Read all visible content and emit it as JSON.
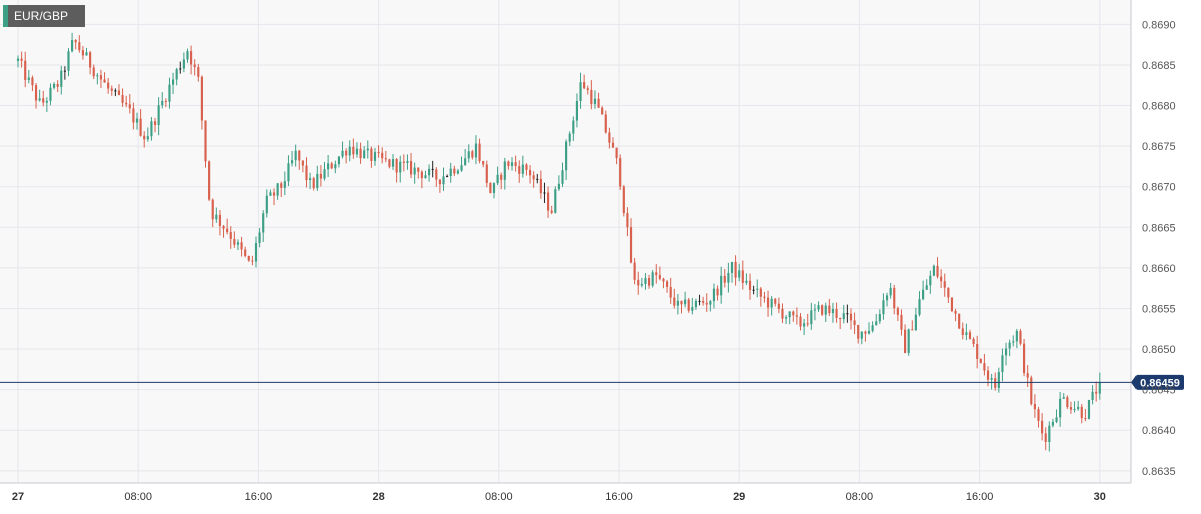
{
  "chart_data": {
    "type": "candlestick",
    "title": "EUR/GBP",
    "y_ticks": [
      0.869,
      0.8685,
      0.868,
      0.8675,
      0.867,
      0.8665,
      0.866,
      0.8655,
      0.865,
      0.8645,
      0.864,
      0.8635
    ],
    "y_tick_labels": [
      "0.8690",
      "0.8685",
      "0.8680",
      "0.8675",
      "0.8670",
      "0.8665",
      "0.8660",
      "0.8655",
      "0.8650",
      "0.8645",
      "0.8640",
      "0.8635"
    ],
    "ylim": [
      0.86335,
      0.8693
    ],
    "x_range_hours": [
      0,
      100
    ],
    "x_ticks": [
      {
        "label": "27",
        "hour": 0,
        "bold": true
      },
      {
        "label": "08:00",
        "hour": 8,
        "bold": false
      },
      {
        "label": "16:00",
        "hour": 16,
        "bold": false
      },
      {
        "label": "28",
        "hour": 24,
        "bold": true
      },
      {
        "label": "08:00",
        "hour": 32,
        "bold": false
      },
      {
        "label": "16:00",
        "hour": 40,
        "bold": false
      },
      {
        "label": "29",
        "hour": 48,
        "bold": true
      },
      {
        "label": "08:00",
        "hour": 56,
        "bold": false
      },
      {
        "label": "16:00",
        "hour": 64,
        "bold": false
      },
      {
        "label": "30",
        "hour": 72,
        "bold": true
      }
    ],
    "current_price": 0.86459,
    "current_price_label": "0.86459",
    "colors": {
      "up": "#3d9f86",
      "down": "#d8604c",
      "doji": "#222222",
      "price_line": "#1d3a6e",
      "price_label_bg": "#1d3a6e",
      "grid": "#e6e6ec",
      "plot_bg": "#f8f8f9",
      "axis_text": "#555555"
    },
    "grid": true,
    "key_points": [
      [
        0.0,
        0.86855
      ],
      [
        1.5,
        0.868
      ],
      [
        2.8,
        0.8683
      ],
      [
        3.7,
        0.8688
      ],
      [
        6.0,
        0.8682
      ],
      [
        7.5,
        0.8679
      ],
      [
        8.5,
        0.8676
      ],
      [
        10.0,
        0.8682
      ],
      [
        11.3,
        0.8687
      ],
      [
        12.0,
        0.8683
      ],
      [
        12.8,
        0.8667
      ],
      [
        14.0,
        0.86645
      ],
      [
        15.5,
        0.866
      ],
      [
        16.5,
        0.8668
      ],
      [
        17.5,
        0.867
      ],
      [
        18.5,
        0.8674
      ],
      [
        19.5,
        0.867
      ],
      [
        20.5,
        0.8672
      ],
      [
        22.0,
        0.8675
      ],
      [
        23.0,
        0.8674
      ],
      [
        24.5,
        0.8673
      ],
      [
        26.5,
        0.8672
      ],
      [
        28.0,
        0.8671
      ],
      [
        29.5,
        0.8673
      ],
      [
        30.5,
        0.8675
      ],
      [
        31.5,
        0.8669
      ],
      [
        32.5,
        0.8673
      ],
      [
        34.0,
        0.8672
      ],
      [
        35.5,
        0.8667
      ],
      [
        36.5,
        0.8675
      ],
      [
        37.5,
        0.8683
      ],
      [
        38.5,
        0.868
      ],
      [
        39.3,
        0.8676
      ],
      [
        40.0,
        0.8672
      ],
      [
        40.5,
        0.8665
      ],
      [
        41.0,
        0.8658
      ],
      [
        42.5,
        0.8659
      ],
      [
        44.0,
        0.8655
      ],
      [
        46.0,
        0.8656
      ],
      [
        47.5,
        0.866
      ],
      [
        49.0,
        0.8657
      ],
      [
        50.5,
        0.8655
      ],
      [
        52.0,
        0.8653
      ],
      [
        53.5,
        0.8655
      ],
      [
        55.0,
        0.8654
      ],
      [
        56.0,
        0.8652
      ],
      [
        57.0,
        0.8653
      ],
      [
        58.0,
        0.8658
      ],
      [
        59.0,
        0.865
      ],
      [
        60.0,
        0.8656
      ],
      [
        61.0,
        0.866
      ],
      [
        62.0,
        0.8656
      ],
      [
        63.0,
        0.8652
      ],
      [
        64.0,
        0.8649
      ],
      [
        65.0,
        0.8645
      ],
      [
        65.5,
        0.865
      ],
      [
        66.5,
        0.8652
      ],
      [
        67.5,
        0.8643
      ],
      [
        68.3,
        0.8639
      ],
      [
        69.5,
        0.8644
      ],
      [
        71.0,
        0.8642
      ],
      [
        72.0,
        0.86459
      ]
    ],
    "volatility": 0.00018,
    "candle_count": 301
  }
}
